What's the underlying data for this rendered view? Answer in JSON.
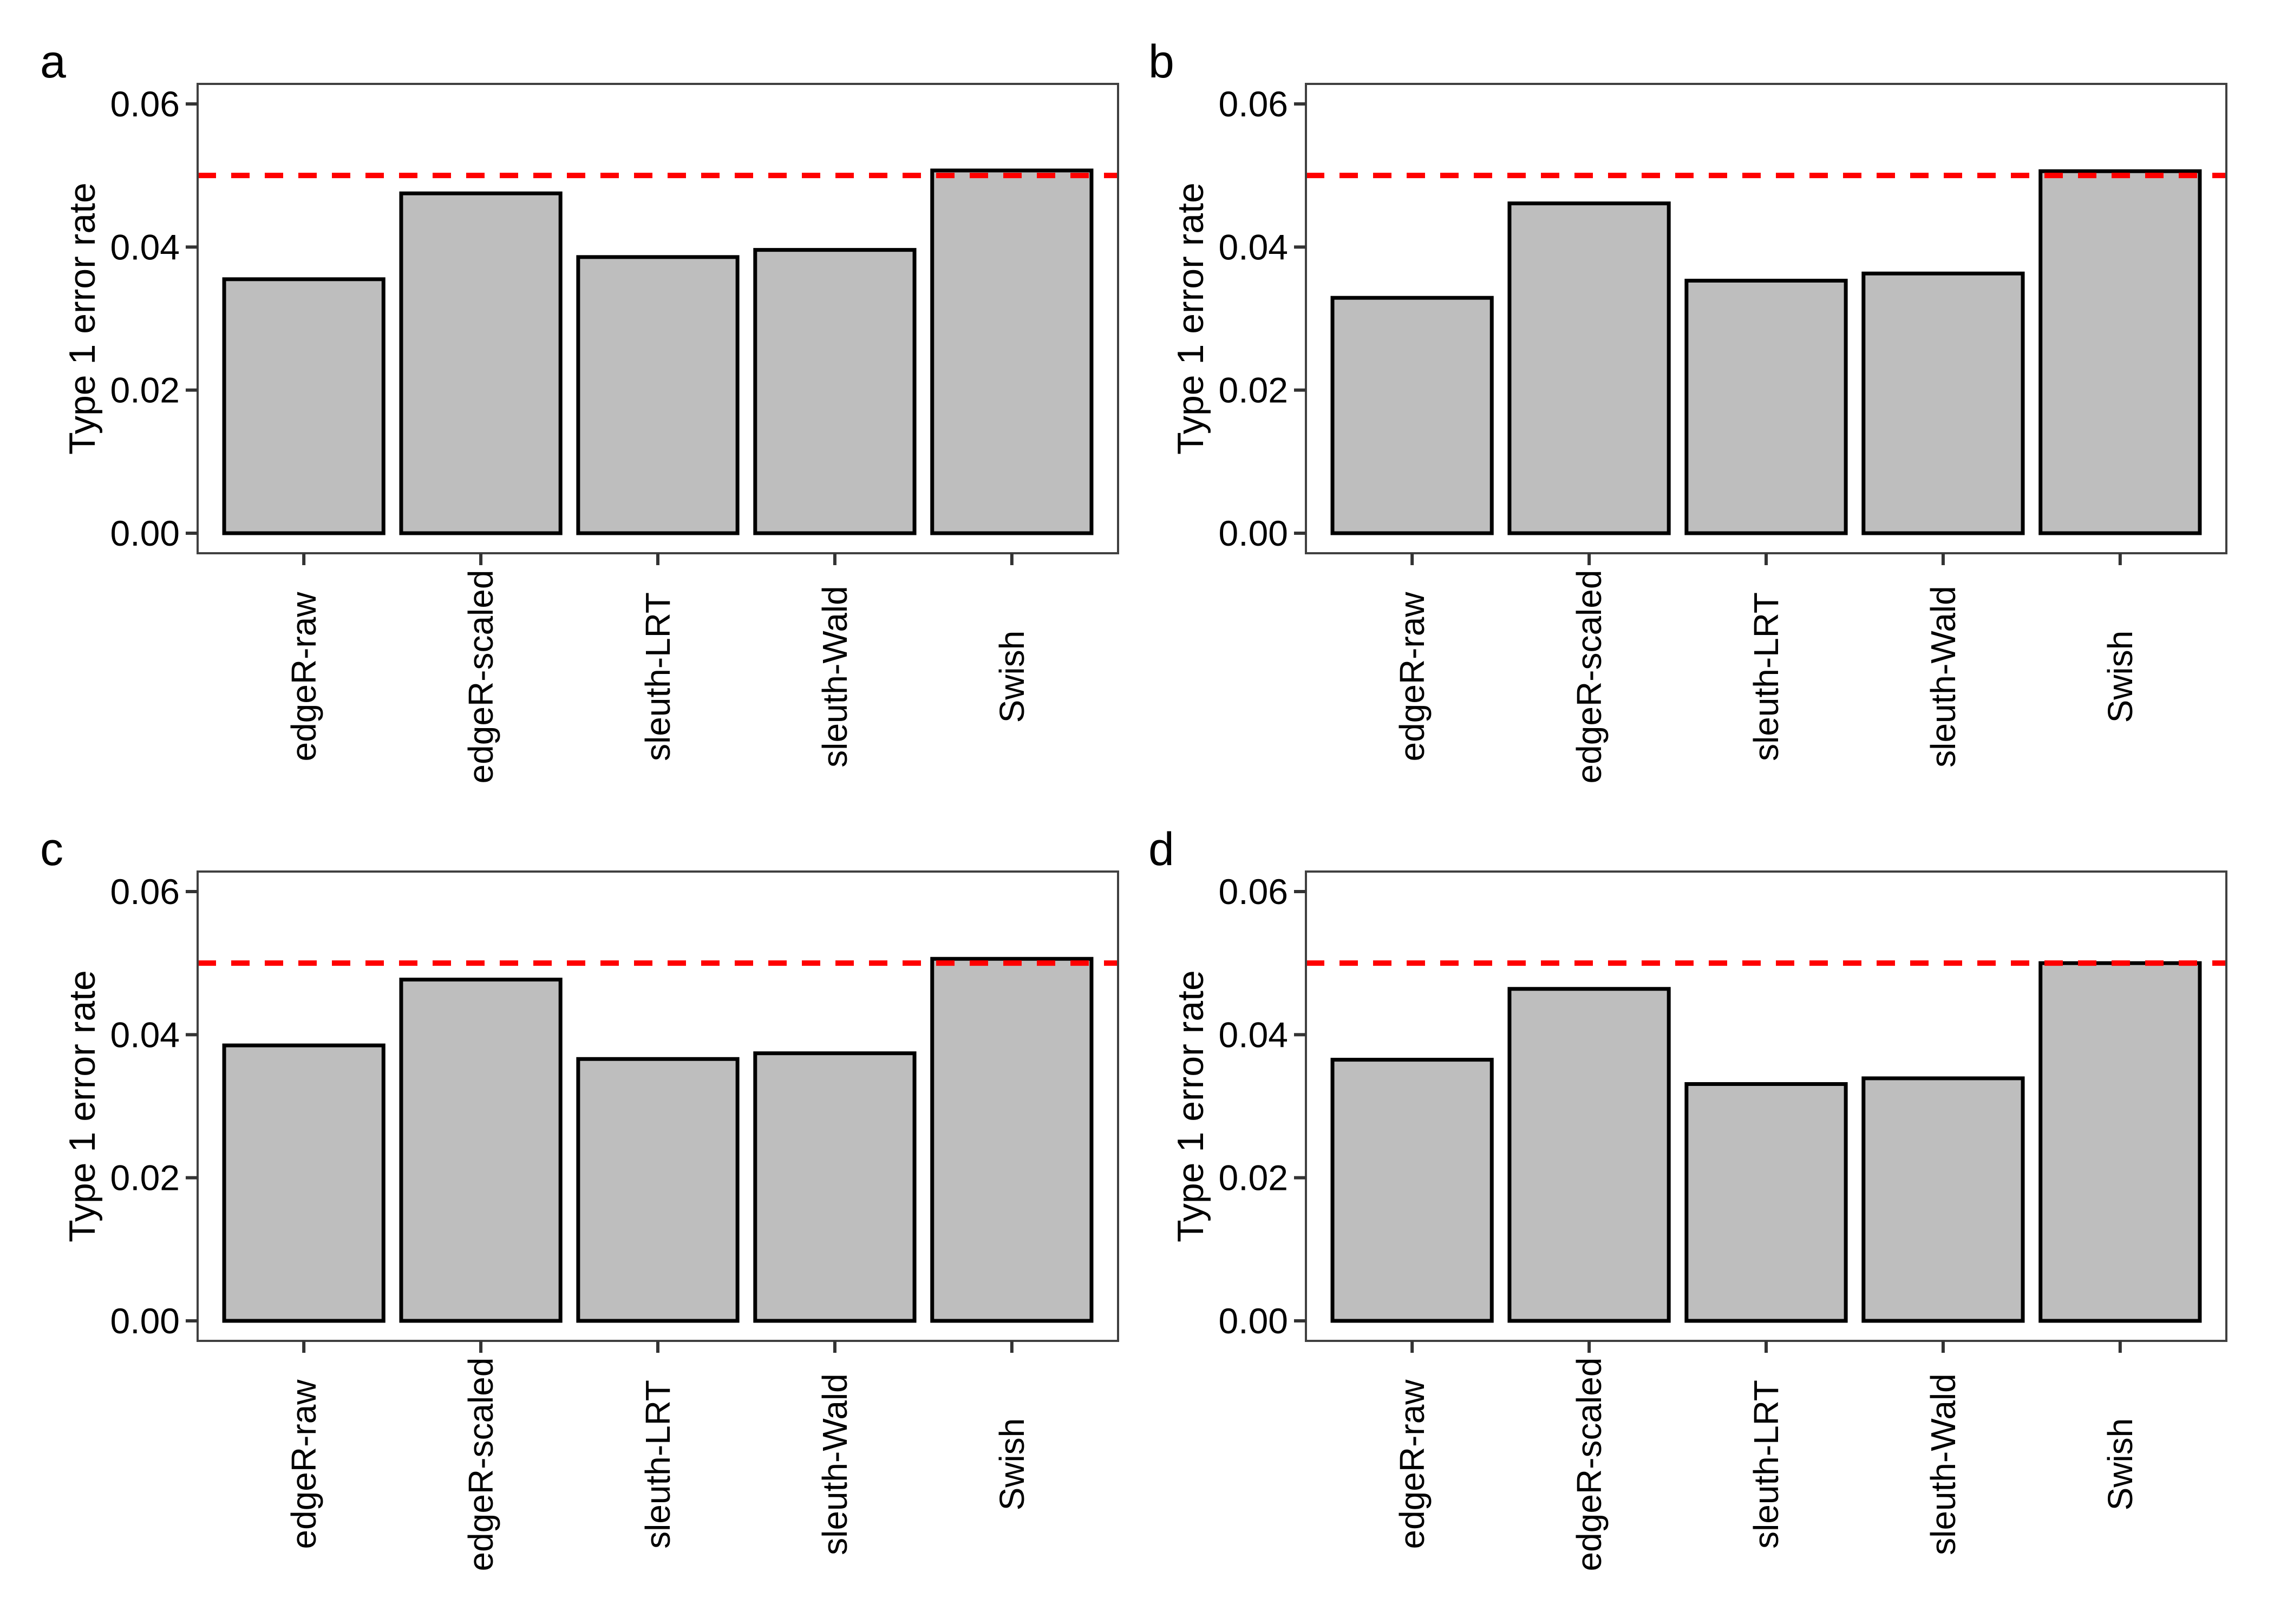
{
  "figure": {
    "background": "#FFFFFF",
    "style": {
      "bar_fill": "#BEBEBE",
      "bar_stroke": "#000000",
      "reference_line_color": "#FF0000",
      "panel_border_color": "#404040",
      "tick_color": "#333333",
      "text_color": "#000000"
    }
  },
  "chart_data": [
    {
      "type": "bar",
      "panel_label": "a",
      "ylabel": "Type 1 error rate",
      "categories": [
        "edgeR-raw",
        "edgeR-scaled",
        "sleuth-LRT",
        "sleuth-Wald",
        "Swish"
      ],
      "values": [
        0.0355,
        0.0475,
        0.0386,
        0.0396,
        0.0507
      ],
      "yticks": [
        0.0,
        0.02,
        0.04,
        0.06
      ],
      "ytick_labels": [
        "0.00",
        "0.02",
        "0.04",
        "0.06"
      ],
      "ylim": [
        -0.0028,
        0.0628
      ],
      "grid": false,
      "legend": null,
      "reference_line": {
        "value": 0.05,
        "style": "dashed",
        "color": "#FF0000"
      }
    },
    {
      "type": "bar",
      "panel_label": "b",
      "ylabel": "Type 1 error rate",
      "categories": [
        "edgeR-raw",
        "edgeR-scaled",
        "sleuth-LRT",
        "sleuth-Wald",
        "Swish"
      ],
      "values": [
        0.0329,
        0.0461,
        0.0353,
        0.0363,
        0.0506
      ],
      "yticks": [
        0.0,
        0.02,
        0.04,
        0.06
      ],
      "ytick_labels": [
        "0.00",
        "0.02",
        "0.04",
        "0.06"
      ],
      "ylim": [
        -0.0028,
        0.0628
      ],
      "grid": false,
      "legend": null,
      "reference_line": {
        "value": 0.05,
        "style": "dashed",
        "color": "#FF0000"
      }
    },
    {
      "type": "bar",
      "panel_label": "c",
      "ylabel": "Type 1 error rate",
      "categories": [
        "edgeR-raw",
        "edgeR-scaled",
        "sleuth-LRT",
        "sleuth-Wald",
        "Swish"
      ],
      "values": [
        0.0385,
        0.0477,
        0.0366,
        0.0374,
        0.0506
      ],
      "yticks": [
        0.0,
        0.02,
        0.04,
        0.06
      ],
      "ytick_labels": [
        "0.00",
        "0.02",
        "0.04",
        "0.06"
      ],
      "ylim": [
        -0.0028,
        0.0628
      ],
      "grid": false,
      "legend": null,
      "reference_line": {
        "value": 0.05,
        "style": "dashed",
        "color": "#FF0000"
      }
    },
    {
      "type": "bar",
      "panel_label": "d",
      "ylabel": "Type 1 error rate",
      "categories": [
        "edgeR-raw",
        "edgeR-scaled",
        "sleuth-LRT",
        "sleuth-Wald",
        "Swish"
      ],
      "values": [
        0.0365,
        0.0464,
        0.0331,
        0.0339,
        0.05
      ],
      "yticks": [
        0.0,
        0.02,
        0.04,
        0.06
      ],
      "ytick_labels": [
        "0.00",
        "0.02",
        "0.04",
        "0.06"
      ],
      "ylim": [
        -0.0028,
        0.0628
      ],
      "grid": false,
      "legend": null,
      "reference_line": {
        "value": 0.05,
        "style": "dashed",
        "color": "#FF0000"
      }
    }
  ]
}
